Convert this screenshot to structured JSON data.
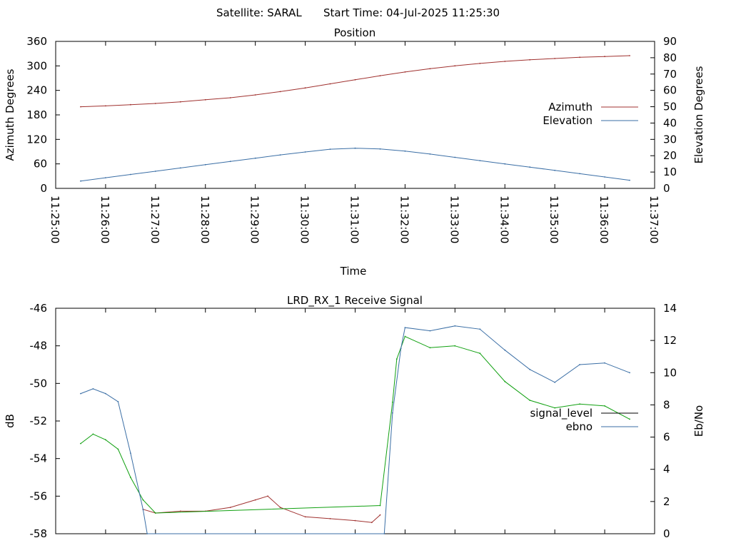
{
  "header": {
    "satellite": "Satellite: SARAL",
    "start_time": "Start Time: 04-Jul-2025 11:25:30"
  },
  "chart_data": [
    {
      "type": "line",
      "title": "Position",
      "xlabel": "Time",
      "ylabel": "Azimuth Degrees",
      "y2label": "Elevation Degrees",
      "x_ticks": [
        "11:25:00",
        "11:26:00",
        "11:27:00",
        "11:28:00",
        "11:29:00",
        "11:30:00",
        "11:31:00",
        "11:32:00",
        "11:33:00",
        "11:34:00",
        "11:35:00",
        "11:36:00",
        "11:37:00"
      ],
      "xlim": [
        "11:25:00",
        "11:37:00"
      ],
      "ylim": [
        0,
        360
      ],
      "y_ticks": [
        0,
        60,
        120,
        180,
        240,
        300,
        360
      ],
      "y2lim": [
        0,
        90
      ],
      "y2_ticks": [
        0,
        10,
        20,
        30,
        40,
        50,
        60,
        70,
        80,
        90
      ],
      "legend_position": "right",
      "series": [
        {
          "name": "Azimuth",
          "axis": "y",
          "color": "#a0312f",
          "x": [
            "11:25:30",
            "11:26:00",
            "11:26:30",
            "11:27:00",
            "11:27:30",
            "11:28:00",
            "11:28:30",
            "11:29:00",
            "11:29:30",
            "11:30:00",
            "11:30:30",
            "11:31:00",
            "11:31:30",
            "11:32:00",
            "11:32:30",
            "11:33:00",
            "11:33:30",
            "11:34:00",
            "11:34:30",
            "11:35:00",
            "11:35:30",
            "11:36:00",
            "11:36:30"
          ],
          "values": [
            200,
            202,
            205,
            208,
            212,
            217,
            222,
            229,
            237,
            246,
            256,
            266,
            276,
            285,
            293,
            300,
            306,
            311,
            315,
            318,
            321,
            323,
            325
          ]
        },
        {
          "name": "Elevation",
          "axis": "y2",
          "color": "#3a6ea5",
          "x": [
            "11:25:30",
            "11:26:00",
            "11:26:30",
            "11:27:00",
            "11:27:30",
            "11:28:00",
            "11:28:30",
            "11:29:00",
            "11:29:30",
            "11:30:00",
            "11:30:30",
            "11:31:00",
            "11:31:30",
            "11:32:00",
            "11:32:30",
            "11:33:00",
            "11:33:30",
            "11:34:00",
            "11:34:30",
            "11:35:00",
            "11:35:30",
            "11:36:00",
            "11:36:30"
          ],
          "values": [
            4.5,
            6.5,
            8.5,
            10.5,
            12.5,
            14.5,
            16.5,
            18.5,
            20.5,
            22.3,
            24,
            24.6,
            24.1,
            22.8,
            21,
            19,
            17,
            15,
            13,
            11,
            9,
            7,
            5
          ]
        }
      ]
    },
    {
      "type": "line",
      "title": "LRD_RX_1 Receive Signal",
      "xlabel": "",
      "ylabel": "dB",
      "y2label": "Eb/No",
      "xlim": [
        "11:25:00",
        "11:37:00"
      ],
      "ylim": [
        -58,
        -46
      ],
      "y_ticks": [
        -58,
        -56,
        -54,
        -52,
        -50,
        -48,
        -46
      ],
      "y2lim": [
        0,
        14
      ],
      "y2_ticks": [
        0,
        2,
        4,
        6,
        8,
        10,
        12,
        14
      ],
      "legend_position": "right",
      "legend_overlap_series": [
        {
          "name": "signal_level",
          "color": "#000000"
        },
        {
          "name": "ebno",
          "color": "#3a6ea5"
        }
      ],
      "series": [
        {
          "name": "signal_level",
          "axis": "y",
          "color": "#000000",
          "x": [],
          "values": []
        },
        {
          "name": "signal_level (low)",
          "axis": "y",
          "color": "#a0312f",
          "x": [
            "11:26:45",
            "11:27:00",
            "11:27:30",
            "11:28:00",
            "11:28:30",
            "11:29:00",
            "11:29:15",
            "11:29:30",
            "11:30:00",
            "11:30:30",
            "11:31:00",
            "11:31:20",
            "11:31:30"
          ],
          "values": [
            -56.7,
            -56.9,
            -56.8,
            -56.8,
            -56.6,
            -56.2,
            -56.0,
            -56.6,
            -57.1,
            -57.2,
            -57.3,
            -57.4,
            -57.0
          ]
        },
        {
          "name": "signal_level (high)",
          "axis": "y",
          "color": "#10a010",
          "x": [
            "11:25:30",
            "11:25:45",
            "11:26:00",
            "11:26:15",
            "11:26:30",
            "11:26:45",
            "11:27:00",
            "11:31:30",
            "11:31:45",
            "11:31:50",
            "11:32:00",
            "11:32:30",
            "11:33:00",
            "11:33:30",
            "11:34:00",
            "11:34:30",
            "11:35:00",
            "11:35:30",
            "11:36:00",
            "11:36:30"
          ],
          "values": [
            -53.2,
            -52.7,
            -53.0,
            -53.5,
            -55.0,
            -56.2,
            -56.9,
            -56.5,
            -51.0,
            -48.7,
            -47.5,
            -48.1,
            -48.0,
            -48.4,
            -49.9,
            -50.9,
            -51.3,
            -51.1,
            -51.2,
            -51.9
          ]
        },
        {
          "name": "ebno",
          "axis": "y2",
          "color": "#3a6ea5",
          "x": [
            "11:25:30",
            "11:25:45",
            "11:26:00",
            "11:26:15",
            "11:26:30",
            "11:26:45",
            "11:26:50",
            "11:31:35",
            "11:31:45",
            "11:31:55",
            "11:32:00",
            "11:32:30",
            "11:33:00",
            "11:33:30",
            "11:34:00",
            "11:34:30",
            "11:35:00",
            "11:35:30",
            "11:36:00",
            "11:36:30"
          ],
          "values": [
            8.7,
            9.0,
            8.7,
            8.2,
            5.0,
            1.5,
            0.0,
            0.0,
            7.5,
            11.5,
            12.8,
            12.6,
            12.9,
            12.7,
            11.4,
            10.2,
            9.4,
            10.5,
            10.6,
            10.0
          ]
        }
      ]
    }
  ]
}
